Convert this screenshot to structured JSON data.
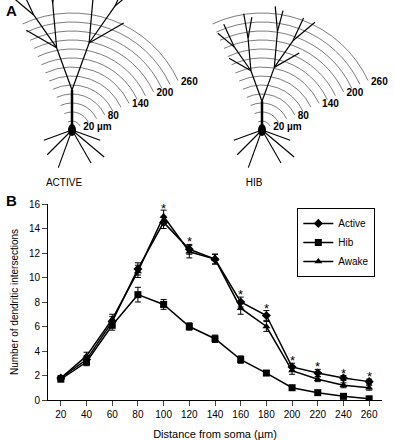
{
  "panel_labels": [
    "A",
    "B"
  ],
  "panel_a": {
    "neurons": [
      "ACTIVE",
      "HIB"
    ],
    "arc_radii": [
      20,
      40,
      60,
      80,
      100,
      120,
      140,
      160,
      180,
      200,
      220,
      240,
      260
    ],
    "arc_labels": [
      {
        "value": 260,
        "label": "260"
      },
      {
        "value": 200,
        "label": "200"
      },
      {
        "value": 140,
        "label": "140"
      },
      {
        "value": 80,
        "label": "80"
      },
      {
        "value": 20,
        "label": "20 µm"
      }
    ]
  },
  "chart_data": {
    "type": "line",
    "x_label": "Distance from soma (µm)",
    "y_label": "Number of dendritic intersections",
    "x": [
      20,
      40,
      60,
      80,
      100,
      120,
      140,
      160,
      180,
      200,
      220,
      240,
      260
    ],
    "series": [
      {
        "name": "Active",
        "color": "#000000",
        "marker": "diamond",
        "values": [
          1.8,
          3.3,
          6.4,
          10.7,
          14.5,
          12.3,
          11.5,
          8.0,
          6.9,
          2.7,
          2.2,
          1.8,
          1.5
        ],
        "errors": [
          0.2,
          0.3,
          0.4,
          0.5,
          0.5,
          0.4,
          0.4,
          0.4,
          0.4,
          0.3,
          0.3,
          0.2,
          0.2
        ]
      },
      {
        "name": "Hib",
        "color": "#000000",
        "marker": "square",
        "values": [
          1.7,
          3.1,
          6.1,
          8.6,
          7.8,
          6.0,
          5.0,
          3.3,
          2.2,
          1.0,
          0.6,
          0.3,
          0.1
        ],
        "errors": [
          0.2,
          0.3,
          0.4,
          0.6,
          0.4,
          0.3,
          0.3,
          0.3,
          0.2,
          0.2,
          0.1,
          0.1,
          0.1
        ]
      },
      {
        "name": "Awake",
        "color": "#000000",
        "marker": "triangle-up",
        "values": [
          1.8,
          3.6,
          6.6,
          10.5,
          15.0,
          12.1,
          11.5,
          7.5,
          6.0,
          2.4,
          1.7,
          1.2,
          1.0
        ],
        "errors": [
          0.2,
          0.3,
          0.4,
          0.5,
          0.5,
          0.5,
          0.4,
          0.5,
          0.4,
          0.3,
          0.2,
          0.2,
          0.2
        ]
      }
    ],
    "annotations": [
      {
        "x": 100,
        "y": 15.6,
        "text": "*"
      },
      {
        "x": 120,
        "y": 12.9,
        "text": "*"
      },
      {
        "x": 160,
        "y": 8.6,
        "text": "*"
      },
      {
        "x": 180,
        "y": 7.5,
        "text": "*"
      },
      {
        "x": 200,
        "y": 3.2,
        "text": "*"
      },
      {
        "x": 220,
        "y": 2.7,
        "text": "*"
      },
      {
        "x": 240,
        "y": 2.2,
        "text": "*"
      },
      {
        "x": 260,
        "y": 1.9,
        "text": "*"
      }
    ],
    "xlim": [
      10,
      270
    ],
    "xticks": [
      20,
      40,
      60,
      80,
      100,
      120,
      140,
      160,
      180,
      200,
      220,
      240,
      260
    ],
    "ylim": [
      0,
      16
    ],
    "yticks": [
      0,
      2,
      4,
      6,
      8,
      10,
      12,
      14,
      16
    ],
    "grid": false,
    "legend": "top right"
  }
}
